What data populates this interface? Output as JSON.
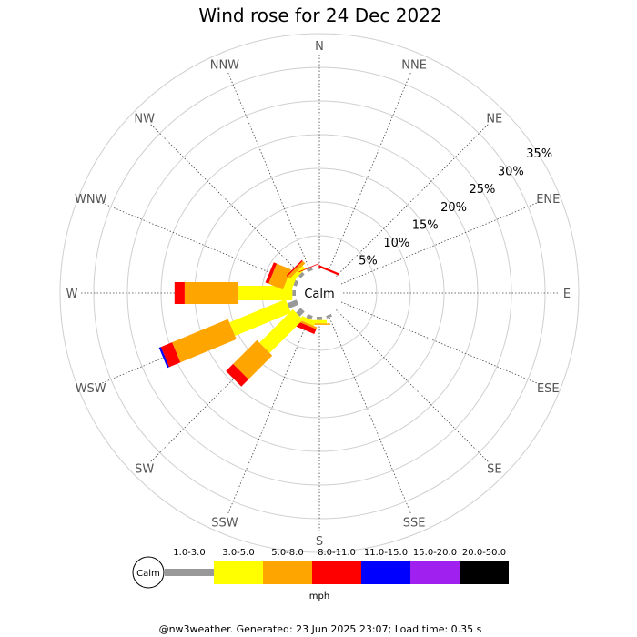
{
  "chart_data": {
    "type": "windrose",
    "title": "Wind rose for 24 Dec 2022",
    "directions": [
      "N",
      "NNE",
      "NE",
      "ENE",
      "E",
      "ESE",
      "SE",
      "SSE",
      "S",
      "SSW",
      "SW",
      "WSW",
      "W",
      "WNW",
      "NW",
      "NNW"
    ],
    "percent_rings": [
      5,
      10,
      15,
      20,
      25,
      30,
      35
    ],
    "percent_ring_labels": [
      "5%",
      "10%",
      "15%",
      "20%",
      "25%",
      "30%",
      "35%"
    ],
    "calm_label": "Calm",
    "speed_bins": [
      {
        "label": "1.0-3.0",
        "color": "#999999"
      },
      {
        "label": "3.0-5.0",
        "color": "#ffff00"
      },
      {
        "label": "5.0-8.0",
        "color": "#ffa500"
      },
      {
        "label": "8.0-11.0",
        "color": "#ff0000"
      },
      {
        "label": "11.0-15.0",
        "color": "#0000ff"
      },
      {
        "label": "15.0-20.0",
        "color": "#a020f0"
      },
      {
        "label": "20.0-50.0",
        "color": "#000000"
      }
    ],
    "units": "mph",
    "series": [
      {
        "direction": "NNE",
        "values": [
          0.0,
          0.0,
          0.0,
          0.3,
          0.0,
          0.0,
          0.0
        ]
      },
      {
        "direction": "SSE",
        "values": [
          0.4,
          0.0,
          0.0,
          0.0,
          0.0,
          0.0,
          0.0
        ]
      },
      {
        "direction": "S",
        "values": [
          0.5,
          0.5,
          0.2,
          0.0,
          0.0,
          0.0,
          0.0
        ]
      },
      {
        "direction": "SSW",
        "values": [
          0.6,
          0.7,
          0.3,
          0.8,
          0.0,
          0.0,
          0.0
        ]
      },
      {
        "direction": "SW",
        "values": [
          1.0,
          7.0,
          5.0,
          1.5,
          0.0,
          0.0,
          0.0
        ]
      },
      {
        "direction": "WSW",
        "values": [
          1.5,
          9.0,
          9.0,
          1.8,
          0.3,
          0.0,
          0.0
        ]
      },
      {
        "direction": "W",
        "values": [
          0.5,
          8.0,
          8.0,
          1.5,
          0.0,
          0.0,
          0.0
        ]
      },
      {
        "direction": "WNW",
        "values": [
          0.5,
          1.2,
          2.3,
          0.5,
          0.0,
          0.0,
          0.0
        ]
      },
      {
        "direction": "NW",
        "values": [
          0.5,
          0.6,
          0.5,
          0.2,
          0.0,
          0.0,
          0.0
        ]
      },
      {
        "direction": "NNW",
        "values": [
          0.5,
          0.0,
          0.0,
          0.1,
          0.0,
          0.0,
          0.0
        ]
      }
    ]
  },
  "footer": "@nw3weather. Generated: 23 Jun 2025 23:07; Load time: 0.35 s"
}
